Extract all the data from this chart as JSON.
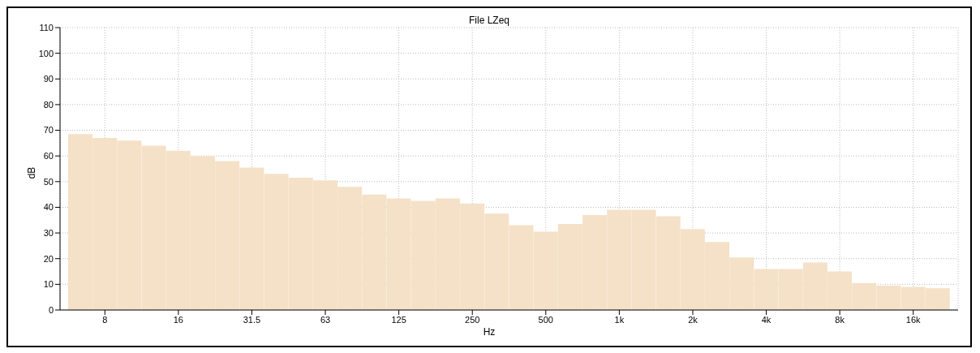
{
  "chart_data": {
    "type": "bar",
    "title": "File LZeq",
    "xlabel": "Hz",
    "ylabel": "dB",
    "categories": [
      null,
      "8",
      null,
      null,
      "16",
      null,
      null,
      "31.5",
      null,
      null,
      "63",
      null,
      null,
      "125",
      null,
      null,
      "250",
      null,
      null,
      "500",
      null,
      null,
      "1k",
      null,
      null,
      "2k",
      null,
      null,
      "4k",
      null,
      null,
      "8k",
      null,
      null,
      "16k",
      null
    ],
    "values": [
      68.5,
      67,
      66,
      64,
      62,
      60,
      58,
      55.5,
      53,
      51.5,
      50.5,
      48,
      45,
      43.5,
      42.5,
      43.5,
      41.5,
      37.5,
      33,
      30.5,
      33.5,
      37,
      39,
      39,
      36.5,
      31.5,
      26.5,
      20.5,
      16,
      16,
      18.5,
      15,
      10.5,
      9.5,
      9,
      8.5
    ],
    "color": "#f5e1c8",
    "ylim": [
      0,
      110
    ],
    "yticks": [
      0,
      10,
      20,
      30,
      40,
      50,
      60,
      70,
      80,
      90,
      100,
      110
    ],
    "grid": true
  }
}
